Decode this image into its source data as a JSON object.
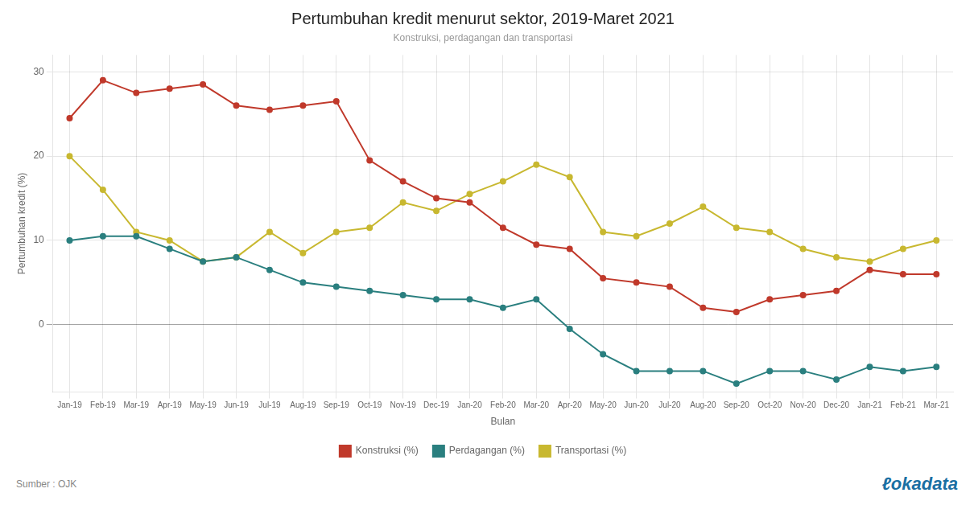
{
  "chart_data": {
    "type": "line",
    "title": "Pertumbuhan kredit menurut sektor, 2019-Maret 2021",
    "subtitle": "Konstruksi, perdagangan dan transportasi",
    "x_label": "Bulan",
    "y_label": "Pertumbuhan kredit (%)",
    "annotations": [
      "Sumber : OJK",
      "ℓokadata"
    ],
    "categories": [
      "Jan-19",
      "Feb-19",
      "Mar-19",
      "Apr-19",
      "May-19",
      "Jun-19",
      "Jul-19",
      "Aug-19",
      "Sep-19",
      "Oct-19",
      "Nov-19",
      "Dec-19",
      "Jan-20",
      "Feb-20",
      "Mar-20",
      "Apr-20",
      "May-20",
      "Jun-20",
      "Jul-20",
      "Aug-20",
      "Sep-20",
      "Oct-20",
      "Nov-20",
      "Dec-20",
      "Jan-21",
      "Feb-21",
      "Mar-21"
    ],
    "series": [
      {
        "name": "Konstruksi (%)",
        "color": "#c0392b",
        "values": [
          24.5,
          29.0,
          27.5,
          28.0,
          28.5,
          26.0,
          25.5,
          26.0,
          26.5,
          19.5,
          17.0,
          15.0,
          14.5,
          11.5,
          9.5,
          9.0,
          5.5,
          5.0,
          4.5,
          2.0,
          1.5,
          3.0,
          3.5,
          4.0,
          6.5,
          6.0,
          6.0
        ]
      },
      {
        "name": "Perdagangan (%)",
        "color": "#2a7f7f",
        "values": [
          10.0,
          10.5,
          10.5,
          9.0,
          7.5,
          8.0,
          6.5,
          5.0,
          4.5,
          4.0,
          3.5,
          3.0,
          3.0,
          2.0,
          3.0,
          -0.5,
          -3.5,
          -5.5,
          -5.5,
          -5.5,
          -7.0,
          -5.5,
          -5.5,
          -6.5,
          -5.0,
          -5.5,
          -5.0
        ]
      },
      {
        "name": "Transportasi (%)",
        "color": "#c8b830",
        "values": [
          20.0,
          16.0,
          11.0,
          10.0,
          7.5,
          8.0,
          11.0,
          8.5,
          11.0,
          11.5,
          14.5,
          13.5,
          15.5,
          17.0,
          19.0,
          17.5,
          11.0,
          10.5,
          12.0,
          14.0,
          11.5,
          11.0,
          9.0,
          8.0,
          7.5,
          9.0,
          10.0
        ]
      }
    ],
    "ylim": [
      -8,
      32
    ],
    "yticks": [
      0,
      10,
      20,
      30
    ],
    "grid": true,
    "legend": "bottom",
    "marker": "circle"
  }
}
